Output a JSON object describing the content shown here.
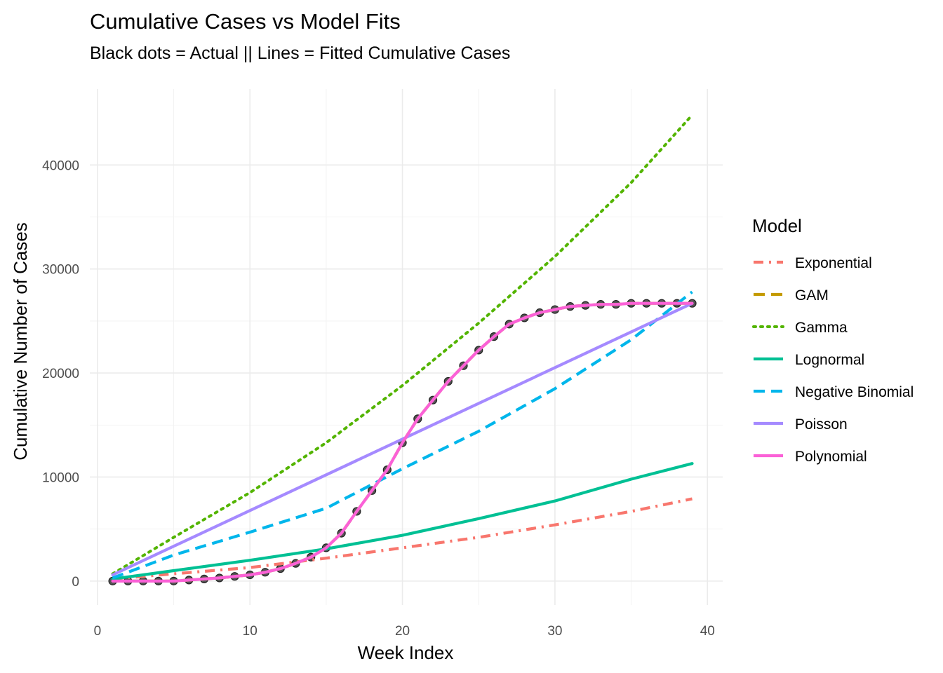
{
  "chart_data": {
    "type": "line",
    "title": "Cumulative Cases vs Model Fits",
    "subtitle": "Black dots = Actual || Lines = Fitted Cumulative Cases",
    "xlabel": "Week Index",
    "ylabel": "Cumulative Number of Cases",
    "xlim": [
      -0.5,
      41
    ],
    "ylim": [
      -2300,
      47300
    ],
    "xticks": [
      0,
      10,
      20,
      30,
      40
    ],
    "yticks": [
      0,
      10000,
      20000,
      30000,
      40000
    ],
    "grid": true,
    "legend": {
      "title": "Model",
      "placement": "right"
    },
    "actual": {
      "x": [
        1,
        2,
        3,
        4,
        5,
        6,
        7,
        8,
        9,
        10,
        11,
        12,
        13,
        14,
        15,
        16,
        17,
        18,
        19,
        20,
        21,
        22,
        23,
        24,
        25,
        26,
        27,
        28,
        29,
        30,
        31,
        32,
        33,
        34,
        35,
        36,
        37,
        38,
        39
      ],
      "y": [
        0,
        0,
        0,
        0,
        0,
        100,
        200,
        300,
        450,
        600,
        850,
        1200,
        1700,
        2300,
        3200,
        4600,
        6700,
        8700,
        10700,
        13300,
        15600,
        17400,
        19200,
        20700,
        22200,
        23500,
        24700,
        25300,
        25800,
        26100,
        26400,
        26500,
        26600,
        26600,
        26700,
        26700,
        26700,
        26700,
        26700
      ]
    },
    "series": [
      {
        "name": "Exponential",
        "color": "#F8766D",
        "dash": "14 8 3 8",
        "x": [
          1,
          5,
          10,
          15,
          20,
          25,
          30,
          35,
          39
        ],
        "y": [
          200,
          700,
          1300,
          2200,
          3200,
          4200,
          5400,
          6700,
          7900
        ]
      },
      {
        "name": "GAM",
        "color": "#C49A00",
        "dash": "16 9",
        "x": [
          1,
          2,
          3,
          4,
          5,
          6,
          7,
          8,
          9,
          10,
          11,
          12,
          13,
          14,
          15,
          16,
          17,
          18,
          19,
          20,
          21,
          22,
          23,
          24,
          25,
          26,
          27,
          28,
          29,
          30,
          31,
          32,
          33,
          34,
          35,
          36,
          37,
          38,
          39
        ],
        "y": [
          0,
          0,
          0,
          0,
          0,
          100,
          200,
          300,
          450,
          600,
          850,
          1200,
          1700,
          2300,
          3200,
          4600,
          6700,
          8700,
          10700,
          13300,
          15600,
          17400,
          19200,
          20700,
          22200,
          23500,
          24700,
          25300,
          25800,
          26100,
          26400,
          26500,
          26600,
          26600,
          26700,
          26700,
          26700,
          26700,
          26700
        ]
      },
      {
        "name": "Gamma",
        "color": "#53B400",
        "dash": "3 7",
        "x": [
          1,
          5,
          10,
          15,
          20,
          25,
          30,
          35,
          39
        ],
        "y": [
          700,
          4200,
          8500,
          13300,
          18800,
          24800,
          31200,
          38300,
          44800
        ]
      },
      {
        "name": "Lognormal",
        "color": "#00C094",
        "dash": "",
        "x": [
          1,
          5,
          10,
          15,
          20,
          25,
          30,
          35,
          39
        ],
        "y": [
          200,
          1000,
          2000,
          3100,
          4400,
          6000,
          7700,
          9800,
          11300
        ]
      },
      {
        "name": "Negative Binomial",
        "color": "#00B6EB",
        "dash": "16 9",
        "x": [
          1,
          5,
          10,
          15,
          20,
          25,
          30,
          35,
          39
        ],
        "y": [
          300,
          2500,
          4700,
          7000,
          10800,
          14400,
          18500,
          23200,
          27800
        ]
      },
      {
        "name": "Poisson",
        "color": "#A58AFF",
        "dash": "",
        "x": [
          1,
          39
        ],
        "y": [
          600,
          26700
        ]
      },
      {
        "name": "Polynomial",
        "color": "#FB61D7",
        "dash": "",
        "x": [
          1,
          2,
          3,
          4,
          5,
          6,
          7,
          8,
          9,
          10,
          11,
          12,
          13,
          14,
          15,
          16,
          17,
          18,
          19,
          20,
          21,
          22,
          23,
          24,
          25,
          26,
          27,
          28,
          29,
          30,
          31,
          32,
          33,
          34,
          35,
          36,
          37,
          38,
          39
        ],
        "y": [
          0,
          0,
          0,
          0,
          0,
          100,
          200,
          300,
          450,
          600,
          850,
          1200,
          1700,
          2300,
          3200,
          4600,
          6700,
          8700,
          10700,
          13300,
          15600,
          17400,
          19200,
          20700,
          22200,
          23500,
          24700,
          25300,
          25800,
          26100,
          26400,
          26500,
          26600,
          26600,
          26700,
          26700,
          26700,
          26700,
          26700
        ]
      }
    ]
  }
}
